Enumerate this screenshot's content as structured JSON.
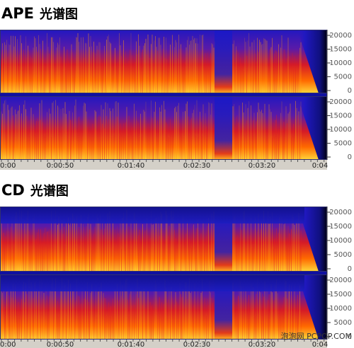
{
  "panels": [
    {
      "title_bold": "APE",
      "title": "光谱图",
      "y_ticks": [
        20000,
        15000,
        10000,
        5000,
        0
      ],
      "time_labels": [
        "0:00",
        "0:00:50",
        "0:01:40",
        "0:02:30",
        "0:03:20",
        "0:04"
      ]
    },
    {
      "title_bold": "CD",
      "title": "光谱图",
      "y_ticks": [
        20000,
        15000,
        10000,
        5000,
        0
      ],
      "time_labels": [
        "0:00",
        "0:00:50",
        "0:01:40",
        "0:02:30",
        "0:03:20",
        "0:04"
      ]
    }
  ],
  "watermark": "泡泡网 PCPOP.COM"
}
